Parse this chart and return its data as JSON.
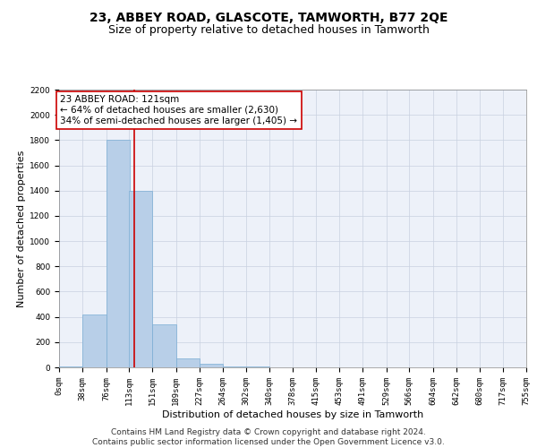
{
  "title": "23, ABBEY ROAD, GLASCOTE, TAMWORTH, B77 2QE",
  "subtitle": "Size of property relative to detached houses in Tamworth",
  "xlabel": "Distribution of detached houses by size in Tamworth",
  "ylabel": "Number of detached properties",
  "bin_edges": [
    0,
    38,
    76,
    113,
    151,
    189,
    227,
    264,
    302,
    340,
    378,
    415,
    453,
    491,
    529,
    566,
    604,
    642,
    680,
    717,
    755
  ],
  "bar_heights": [
    10,
    420,
    1800,
    1400,
    340,
    70,
    25,
    10,
    5,
    3,
    2,
    2,
    1,
    1,
    1,
    1,
    1,
    0,
    0,
    0
  ],
  "bar_color": "#b8cfe8",
  "bar_edgecolor": "#7aadd4",
  "property_sqm": 121,
  "redline_color": "#cc0000",
  "annotation_line1": "23 ABBEY ROAD: 121sqm",
  "annotation_line2": "← 64% of detached houses are smaller (2,630)",
  "annotation_line3": "34% of semi-detached houses are larger (1,405) →",
  "annotation_box_color": "#ffffff",
  "annotation_box_edgecolor": "#cc0000",
  "ylim": [
    0,
    2200
  ],
  "yticks": [
    0,
    200,
    400,
    600,
    800,
    1000,
    1200,
    1400,
    1600,
    1800,
    2000,
    2200
  ],
  "footer_line1": "Contains HM Land Registry data © Crown copyright and database right 2024.",
  "footer_line2": "Contains public sector information licensed under the Open Government Licence v3.0.",
  "background_color": "#edf1f9",
  "grid_color": "#c8d0e0",
  "title_fontsize": 10,
  "subtitle_fontsize": 9,
  "tick_fontsize": 6.5,
  "label_fontsize": 8,
  "annotation_fontsize": 7.5,
  "footer_fontsize": 6.5
}
